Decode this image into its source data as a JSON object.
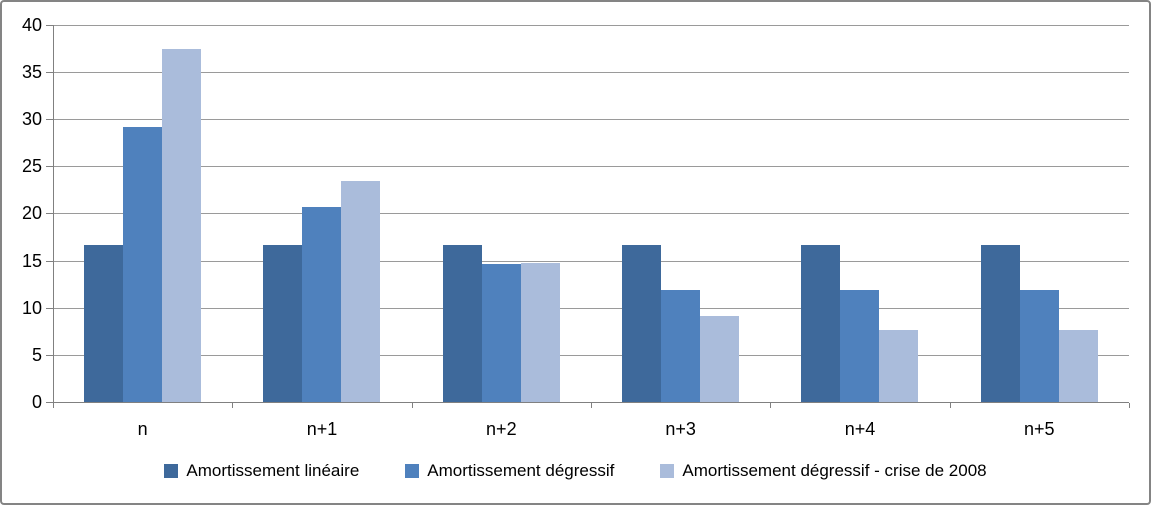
{
  "chart_data": {
    "type": "bar",
    "title": "",
    "categories": [
      "n",
      "n+1",
      "n+2",
      "n+3",
      "n+4",
      "n+5"
    ],
    "series": [
      {
        "name": "Amortissement linéaire",
        "color": "#3E699B",
        "values": [
          16.67,
          16.67,
          16.67,
          16.67,
          16.67,
          16.67
        ]
      },
      {
        "name": "Amortissement dégressif",
        "color": "#4F81BD",
        "values": [
          29.17,
          20.66,
          14.63,
          11.85,
          11.85,
          11.85
        ]
      },
      {
        "name": "Amortissement dégressif - crise de 2008",
        "color": "#AABCDB",
        "values": [
          37.5,
          23.44,
          14.8,
          9.15,
          7.63,
          7.63
        ]
      }
    ],
    "xlabel": "",
    "ylabel": "",
    "ylim": [
      0,
      40
    ],
    "yticks": [
      0,
      5,
      10,
      15,
      20,
      25,
      30,
      35,
      40
    ],
    "grid": true,
    "legend_position": "bottom"
  },
  "colors": {
    "gridline": "#9A9A9A",
    "axis": "#808080",
    "frame_border": "#848484",
    "text": "#000000",
    "background": "#FFFFFF"
  }
}
